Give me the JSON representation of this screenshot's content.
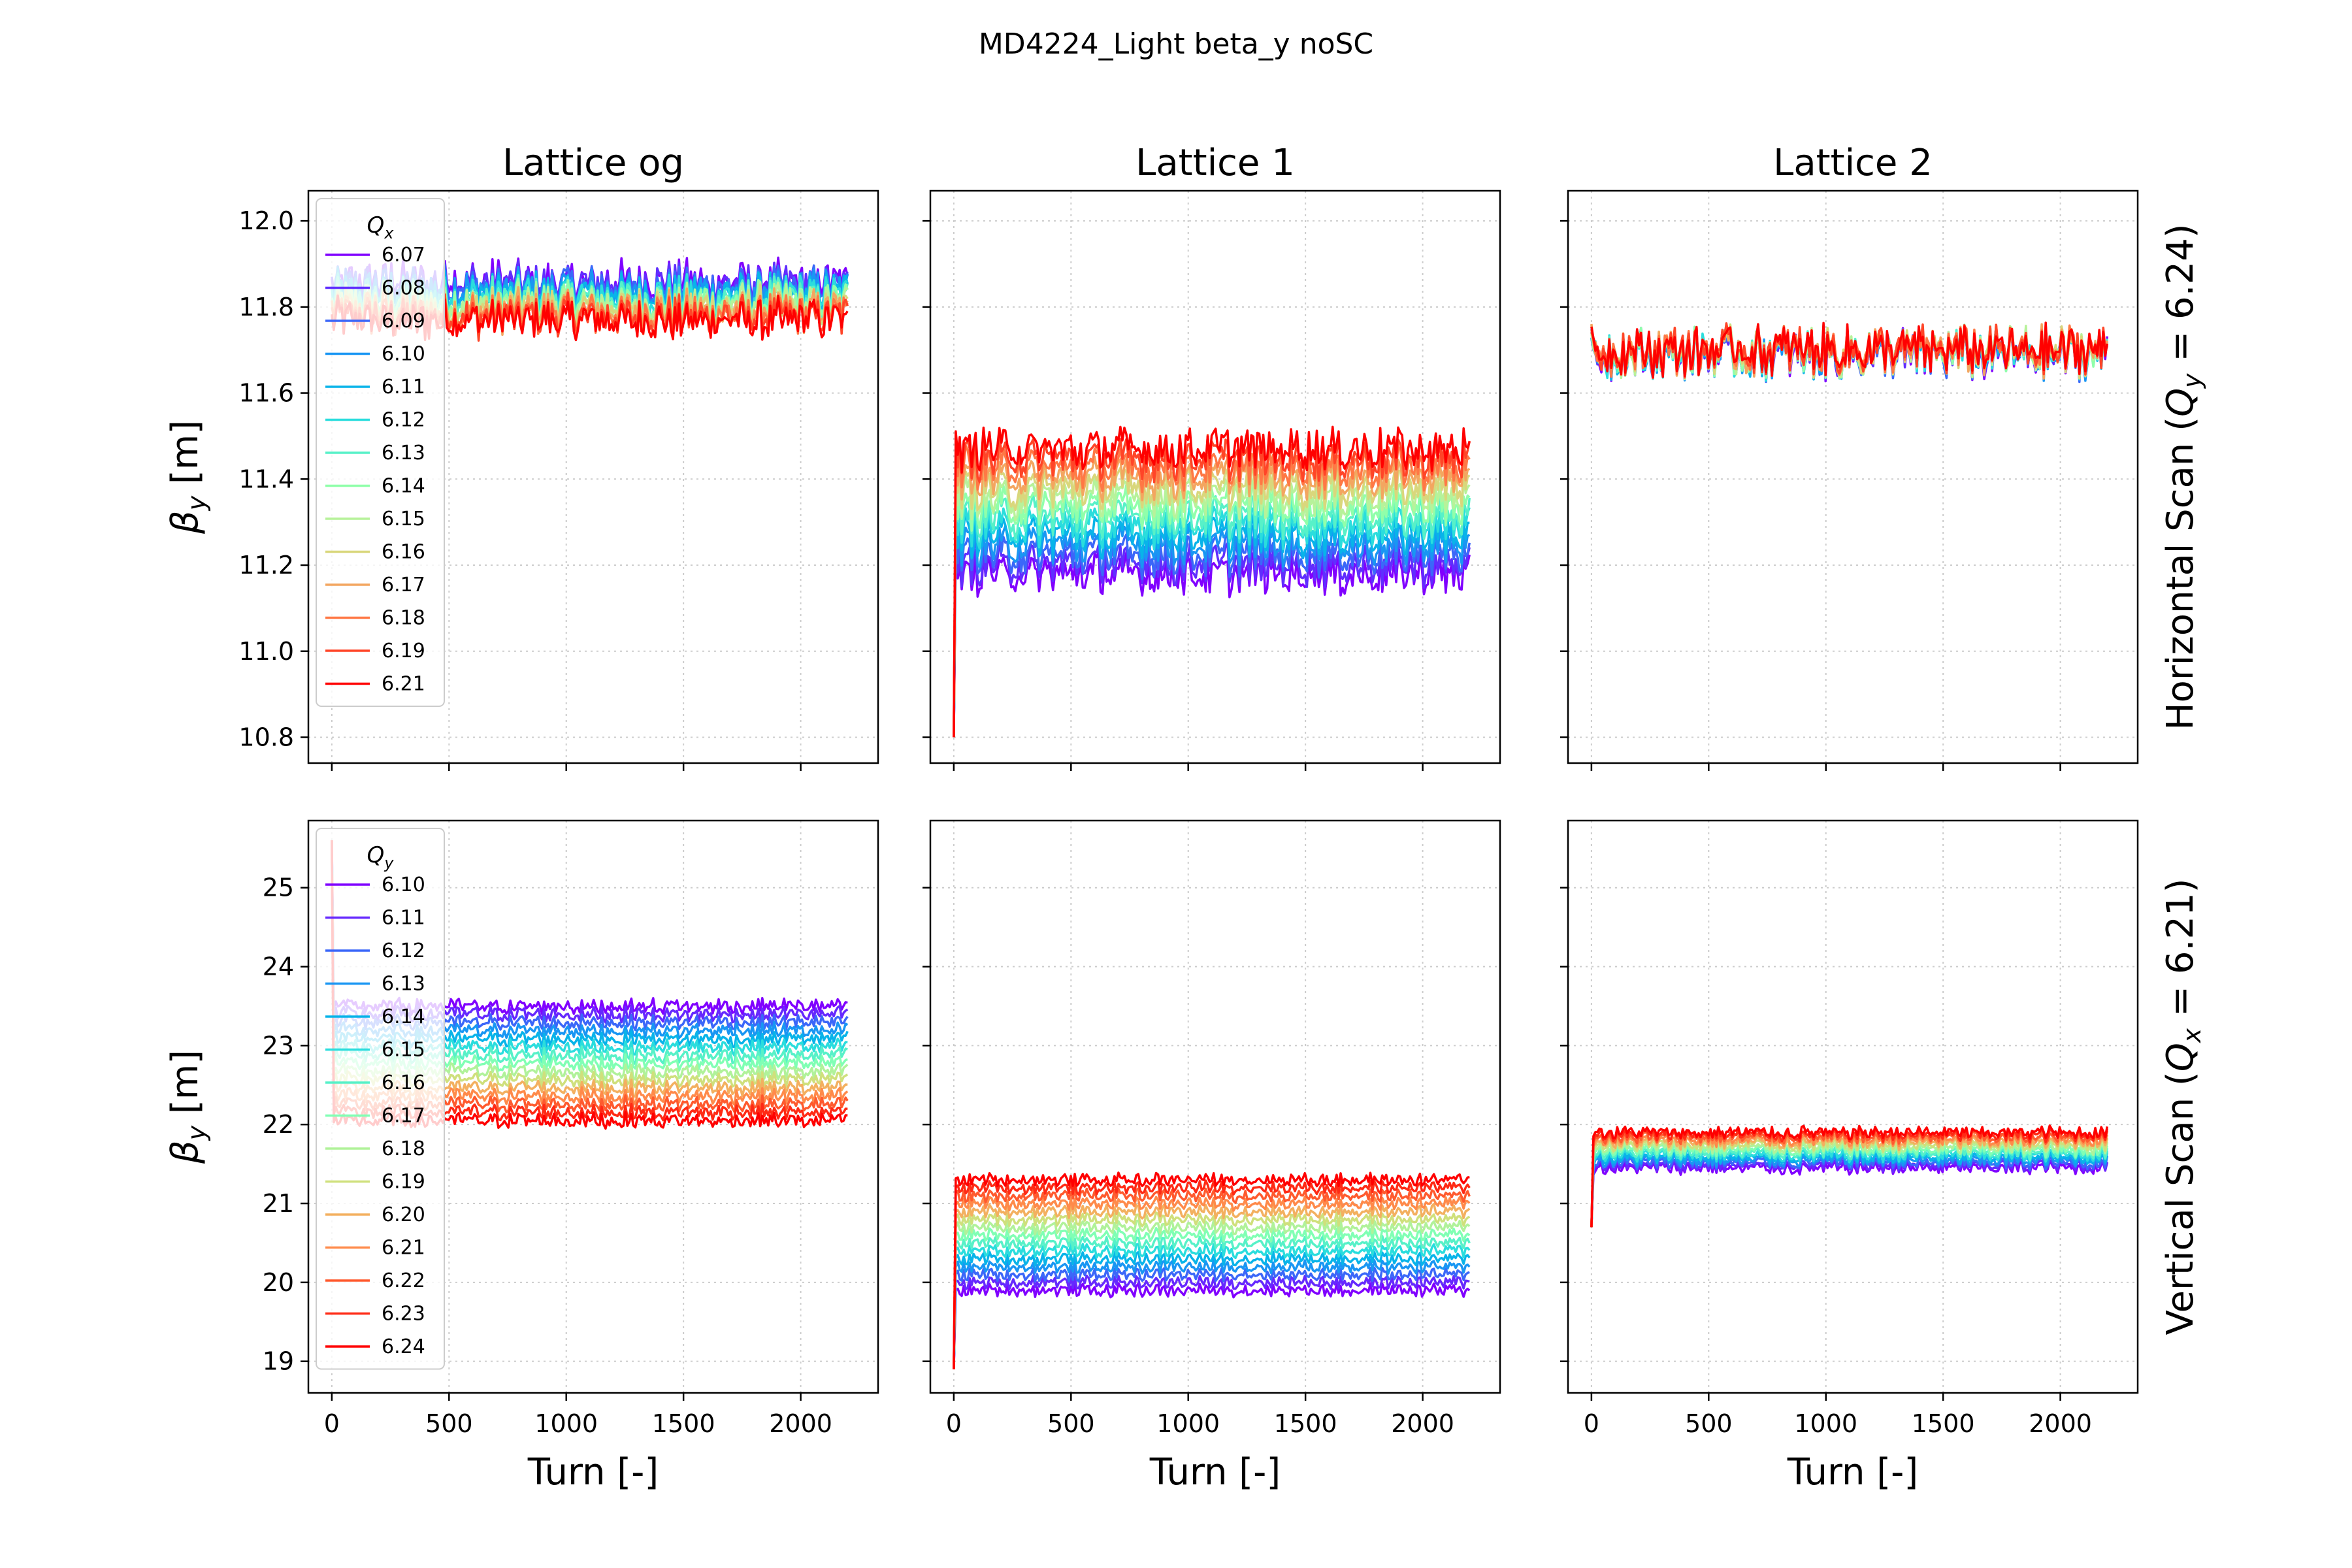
{
  "figure_title": "MD4224_Light beta_y noSC",
  "columns": [
    "Lattice og",
    "Lattice 1",
    "Lattice 2"
  ],
  "rows": [
    {
      "row_label": "Horizontal Scan",
      "row_label_param": "(Q",
      "row_label_sub": "y",
      "row_label_value": " = 6.24)"
    },
    {
      "row_label": "Vertical Scan",
      "row_label_param": "(Q",
      "row_label_sub": "x",
      "row_label_value": " = 6.21)"
    }
  ],
  "ylabel_symbol": "β",
  "ylabel_sub": "y",
  "ylabel_unit": " [m]",
  "xlabel": "Turn [-]",
  "legends": [
    {
      "title_symbol": "Q",
      "title_sub": "x",
      "entries": [
        "6.07",
        "6.08",
        "6.09",
        "6.10",
        "6.11",
        "6.12",
        "6.13",
        "6.14",
        "6.15",
        "6.16",
        "6.17",
        "6.18",
        "6.19",
        "6.21"
      ]
    },
    {
      "title_symbol": "Q",
      "title_sub": "y",
      "entries": [
        "6.10",
        "6.11",
        "6.12",
        "6.13",
        "6.14",
        "6.15",
        "6.16",
        "6.17",
        "6.18",
        "6.19",
        "6.20",
        "6.21",
        "6.22",
        "6.23",
        "6.24"
      ]
    }
  ],
  "chart_data": [
    {
      "type": "line",
      "title": "Lattice og",
      "row": "Horizontal Scan",
      "xlim": [
        -100,
        2330
      ],
      "ylim": [
        10.74,
        12.07
      ],
      "yticks": [
        10.8,
        11.0,
        11.2,
        11.4,
        11.6,
        11.8,
        12.0
      ],
      "ytick_labels": [
        "10.8",
        "11.0",
        "11.2",
        "11.4",
        "11.6",
        "11.8",
        "12.0"
      ],
      "xticks": [
        0,
        500,
        1000,
        1500,
        2000
      ],
      "x_range": [
        0,
        2200
      ],
      "series_low_mean": 11.86,
      "series_high_mean": 11.77,
      "noise_amplitude": 0.06,
      "note_spread": "tight bundle",
      "series_names": [
        "6.07",
        "6.08",
        "6.09",
        "6.10",
        "6.11",
        "6.12",
        "6.13",
        "6.14",
        "6.15",
        "6.16",
        "6.17",
        "6.18",
        "6.19",
        "6.21"
      ]
    },
    {
      "type": "line",
      "title": "Lattice 1",
      "row": "Horizontal Scan",
      "xlim": [
        -100,
        2330
      ],
      "ylim": [
        10.74,
        12.07
      ],
      "yticks": [
        10.8,
        11.0,
        11.2,
        11.4,
        11.6,
        11.8,
        12.0
      ],
      "xticks": [
        0,
        500,
        1000,
        1500,
        2000
      ],
      "x_range": [
        0,
        2200
      ],
      "series_low_mean": 11.18,
      "series_high_mean": 11.47,
      "noise_amplitude": 0.06,
      "start_value": 10.8,
      "series_names": [
        "6.07",
        "6.08",
        "6.09",
        "6.10",
        "6.11",
        "6.12",
        "6.13",
        "6.14",
        "6.15",
        "6.16",
        "6.17",
        "6.18",
        "6.19",
        "6.21"
      ]
    },
    {
      "type": "line",
      "title": "Lattice 2",
      "row": "Horizontal Scan",
      "xlim": [
        -100,
        2330
      ],
      "ylim": [
        10.74,
        12.07
      ],
      "yticks": [
        10.8,
        11.0,
        11.2,
        11.4,
        11.6,
        11.8,
        12.0
      ],
      "xticks": [
        0,
        500,
        1000,
        1500,
        2000
      ],
      "x_range": [
        0,
        2200
      ],
      "series_low_mean": 11.69,
      "series_high_mean": 11.7,
      "noise_amplitude": 0.07,
      "series_names": [
        "6.07",
        "6.08",
        "6.09",
        "6.10",
        "6.11",
        "6.12",
        "6.13",
        "6.14",
        "6.15",
        "6.16",
        "6.17",
        "6.18",
        "6.19",
        "6.21"
      ]
    },
    {
      "type": "line",
      "title": "Lattice og",
      "row": "Vertical Scan",
      "xlim": [
        -100,
        2330
      ],
      "ylim": [
        18.6,
        25.85
      ],
      "yticks": [
        19,
        20,
        21,
        22,
        23,
        24,
        25
      ],
      "ytick_labels": [
        "19",
        "20",
        "21",
        "22",
        "23",
        "24",
        "25"
      ],
      "xticks": [
        0,
        500,
        1000,
        1500,
        2000
      ],
      "xtick_labels": [
        "0",
        "500",
        "1000",
        "1500",
        "2000"
      ],
      "x_range": [
        0,
        2200
      ],
      "series_low_mean": 23.5,
      "series_high_mean": 22.05,
      "noise_amplitude": 0.12,
      "start_value": 25.6,
      "series_names": [
        "6.10",
        "6.11",
        "6.12",
        "6.13",
        "6.14",
        "6.15",
        "6.16",
        "6.17",
        "6.18",
        "6.19",
        "6.20",
        "6.21",
        "6.22",
        "6.23",
        "6.24"
      ]
    },
    {
      "type": "line",
      "title": "Lattice 1",
      "row": "Vertical Scan",
      "xlim": [
        -100,
        2330
      ],
      "ylim": [
        18.6,
        25.85
      ],
      "yticks": [
        19,
        20,
        21,
        22,
        23,
        24,
        25
      ],
      "xticks": [
        0,
        500,
        1000,
        1500,
        2000
      ],
      "xtick_labels": [
        "0",
        "500",
        "1000",
        "1500",
        "2000"
      ],
      "x_range": [
        0,
        2200
      ],
      "series_low_mean": 19.9,
      "series_high_mean": 21.3,
      "noise_amplitude": 0.1,
      "start_value": 18.9,
      "series_names": [
        "6.10",
        "6.11",
        "6.12",
        "6.13",
        "6.14",
        "6.15",
        "6.16",
        "6.17",
        "6.18",
        "6.19",
        "6.20",
        "6.21",
        "6.22",
        "6.23",
        "6.24"
      ]
    },
    {
      "type": "line",
      "title": "Lattice 2",
      "row": "Vertical Scan",
      "xlim": [
        -100,
        2330
      ],
      "ylim": [
        18.6,
        25.85
      ],
      "yticks": [
        19,
        20,
        21,
        22,
        23,
        24,
        25
      ],
      "xticks": [
        0,
        500,
        1000,
        1500,
        2000
      ],
      "xtick_labels": [
        "0",
        "500",
        "1000",
        "1500",
        "2000"
      ],
      "x_range": [
        0,
        2200
      ],
      "series_low_mean": 21.45,
      "series_high_mean": 21.9,
      "noise_amplitude": 0.1,
      "start_value": 20.7,
      "series_names": [
        "6.10",
        "6.11",
        "6.12",
        "6.13",
        "6.14",
        "6.15",
        "6.16",
        "6.17",
        "6.18",
        "6.19",
        "6.20",
        "6.21",
        "6.22",
        "6.23",
        "6.24"
      ]
    }
  ],
  "colors": {
    "rainbow_15": [
      "#8000ff",
      "#6629fe",
      "#3b67f9",
      "#1996f3",
      "#08b4e9",
      "#2adddd",
      "#57f1c8",
      "#80ffb4",
      "#b0f29a",
      "#cfe07c",
      "#f3b060",
      "#ff8a4a",
      "#ff5a2e",
      "#ff2a15",
      "#ff0000"
    ],
    "rainbow_14": [
      "#8000ff",
      "#602efe",
      "#3b67f9",
      "#1996f3",
      "#08b4e9",
      "#2adddd",
      "#57f1c8",
      "#90ffaa",
      "#b7f29a",
      "#d9d77c",
      "#f3a660",
      "#ff7845",
      "#ff4528",
      "#ff0000"
    ],
    "grid": "#cccccc"
  }
}
